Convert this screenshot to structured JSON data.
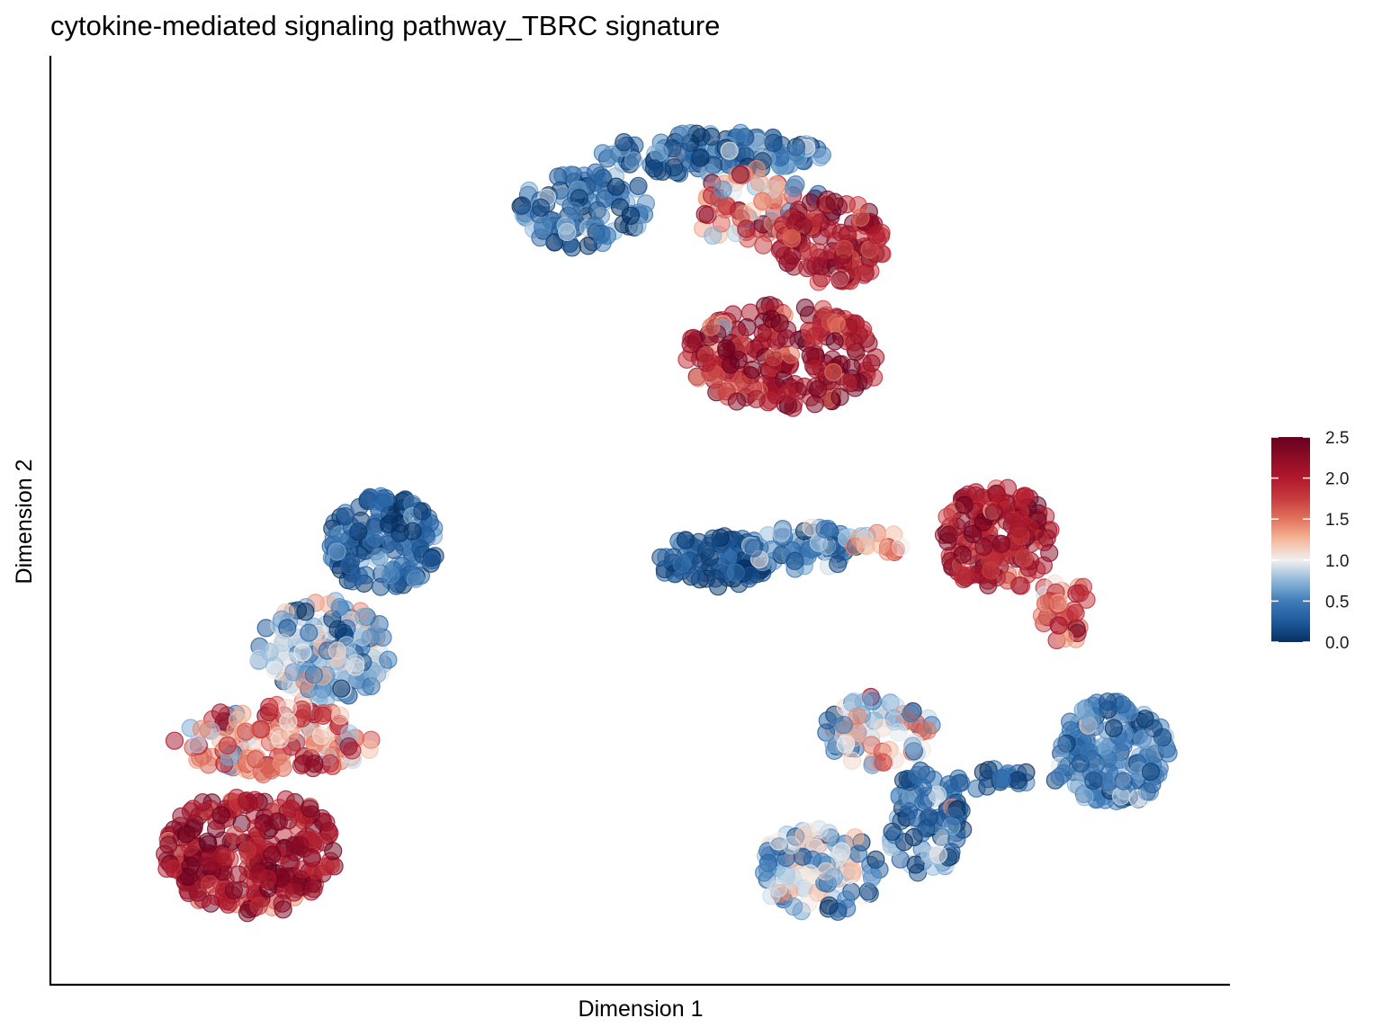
{
  "chart_data": {
    "type": "scatter",
    "title": "cytokine-mediated signaling pathway_TBRC signature",
    "xlabel": "Dimension 1",
    "ylabel": "Dimension 2",
    "x_ticks_shown": false,
    "y_ticks_shown": false,
    "grid": false,
    "legend_position": "right",
    "color_scale": {
      "name": "RdBu (reversed)",
      "min": 0.0,
      "max": 2.5,
      "tick_labels": [
        "2.5",
        "2.0",
        "1.5",
        "1.0",
        "0.5",
        "0.0"
      ],
      "tick_values": [
        2.5,
        2.0,
        1.5,
        1.0,
        0.5,
        0.0
      ],
      "stops": [
        {
          "value": 0.0,
          "color": "#053061"
        },
        {
          "value": 0.25,
          "color": "#1f5a9c"
        },
        {
          "value": 0.5,
          "color": "#3e7bb8"
        },
        {
          "value": 0.75,
          "color": "#8fb8da"
        },
        {
          "value": 1.0,
          "color": "#f0f0f0"
        },
        {
          "value": 1.25,
          "color": "#f6b89a"
        },
        {
          "value": 1.5,
          "color": "#e2735c"
        },
        {
          "value": 1.75,
          "color": "#c73c3f"
        },
        {
          "value": 2.0,
          "color": "#b2182b"
        },
        {
          "value": 2.5,
          "color": "#67001f"
        }
      ]
    },
    "point_opacity": 0.5,
    "xlim": [
      0,
      100
    ],
    "ylim": [
      0,
      100
    ],
    "clusters": [
      {
        "id": "top",
        "regions": [
          {
            "cx": 45.0,
            "cy": 85.8,
            "rx": 6.0,
            "ry": 4.5,
            "n": 110,
            "mean": 0.3,
            "sd": 0.3
          },
          {
            "cx": 56.5,
            "cy": 92.2,
            "rx": 10.0,
            "ry": 2.5,
            "n": 140,
            "mean": 0.4,
            "sd": 0.35
          },
          {
            "cx": 60.5,
            "cy": 86.0,
            "rx": 6.0,
            "ry": 4.5,
            "n": 80,
            "mean": 1.4,
            "sd": 0.45
          },
          {
            "cx": 63.0,
            "cy": 69.0,
            "rx": 9.0,
            "ry": 6.0,
            "n": 230,
            "mean": 2.1,
            "sd": 0.35
          },
          {
            "cx": 67.0,
            "cy": 82.0,
            "rx": 5.0,
            "ry": 5.0,
            "n": 110,
            "mean": 2.1,
            "sd": 0.35
          }
        ]
      },
      {
        "id": "left",
        "regions": [
          {
            "cx": 26.8,
            "cy": 47.5,
            "rx": 5.0,
            "ry": 5.5,
            "n": 150,
            "mean": 0.25,
            "sd": 0.25
          },
          {
            "cx": 21.5,
            "cy": 35.0,
            "rx": 6.0,
            "ry": 6.0,
            "n": 160,
            "mean": 0.7,
            "sd": 0.35
          },
          {
            "cx": 17.0,
            "cy": 25.0,
            "rx": 9.0,
            "ry": 4.0,
            "n": 140,
            "mean": 1.5,
            "sd": 0.4
          },
          {
            "cx": 15.0,
            "cy": 12.0,
            "rx": 8.0,
            "ry": 7.0,
            "n": 260,
            "mean": 2.15,
            "sd": 0.3
          }
        ]
      },
      {
        "id": "mid-right-arm",
        "regions": [
          {
            "cx": 56.5,
            "cy": 45.5,
            "rx": 5.0,
            "ry": 3.0,
            "n": 90,
            "mean": 0.15,
            "sd": 0.2
          },
          {
            "cx": 64.5,
            "cy": 47.0,
            "rx": 5.0,
            "ry": 2.5,
            "n": 60,
            "mean": 0.45,
            "sd": 0.3
          },
          {
            "cx": 71.5,
            "cy": 47.5,
            "rx": 2.5,
            "ry": 1.2,
            "n": 15,
            "mean": 1.1,
            "sd": 0.4
          },
          {
            "cx": 82.0,
            "cy": 48.0,
            "rx": 5.0,
            "ry": 6.0,
            "n": 170,
            "mean": 2.1,
            "sd": 0.35
          },
          {
            "cx": 88.0,
            "cy": 40.0,
            "rx": 2.5,
            "ry": 4.0,
            "n": 40,
            "mean": 1.7,
            "sd": 0.45
          }
        ]
      },
      {
        "id": "bottom-right",
        "regions": [
          {
            "cx": 92.5,
            "cy": 23.5,
            "rx": 5.0,
            "ry": 6.0,
            "n": 190,
            "mean": 0.5,
            "sd": 0.3
          },
          {
            "cx": 82.5,
            "cy": 20.5,
            "rx": 7.0,
            "ry": 1.2,
            "n": 25,
            "mean": 0.25,
            "sd": 0.25
          },
          {
            "cx": 71.5,
            "cy": 26.0,
            "rx": 5.0,
            "ry": 4.0,
            "n": 70,
            "mean": 0.95,
            "sd": 0.45
          },
          {
            "cx": 75.5,
            "cy": 15.5,
            "rx": 3.5,
            "ry": 6.0,
            "n": 90,
            "mean": 0.35,
            "sd": 0.3
          },
          {
            "cx": 66.0,
            "cy": 10.0,
            "rx": 5.5,
            "ry": 5.0,
            "n": 110,
            "mean": 0.75,
            "sd": 0.45
          }
        ]
      }
    ]
  }
}
